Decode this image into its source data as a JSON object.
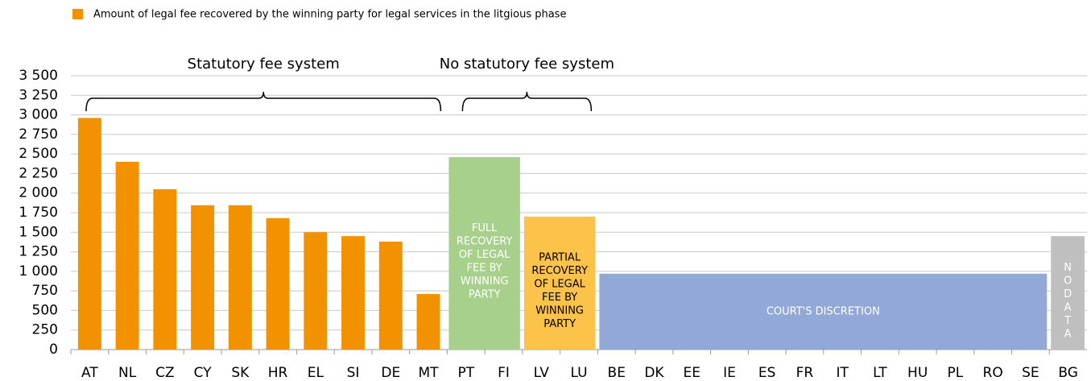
{
  "chart_data": {
    "type": "bar",
    "legend": "Amount of legal fee recovered by the winning party for legal services in the litgious phase",
    "color": "#f39200",
    "categories": [
      "AT",
      "NL",
      "CZ",
      "CY",
      "SK",
      "HR",
      "EL",
      "SI",
      "DE",
      "MT",
      "PT",
      "FI",
      "LV",
      "LU",
      "BE",
      "DK",
      "EE",
      "IE",
      "ES",
      "FR",
      "IT",
      "LT",
      "HU",
      "PL",
      "RO",
      "SE",
      "BG"
    ],
    "values": [
      2960,
      2400,
      2050,
      1845,
      1845,
      1680,
      1500,
      1450,
      1380,
      710,
      null,
      null,
      null,
      null,
      null,
      null,
      null,
      null,
      null,
      null,
      null,
      null,
      null,
      null,
      null,
      null,
      null
    ],
    "ylim": [
      0,
      3500
    ],
    "yticks": [
      0,
      250,
      500,
      750,
      {
        "value": 1000,
        "label": "1 000"
      },
      {
        "value": 1250,
        "label": "1 250"
      },
      {
        "value": 1500,
        "label": "1 500"
      },
      {
        "value": 1750,
        "label": "1 750"
      },
      {
        "value": 2000,
        "label": "2 000"
      },
      {
        "value": 2250,
        "label": "2 250"
      },
      {
        "value": 2500,
        "label": "2 500"
      },
      {
        "value": 2750,
        "label": "2 750"
      },
      {
        "value": 3000,
        "label": "3 000"
      },
      {
        "value": 3250,
        "label": "3 250"
      },
      {
        "value": 3500,
        "label": "3 500"
      }
    ],
    "grid": true,
    "brackets": [
      {
        "label": "Statutory fee system",
        "start": "AT",
        "end": "MT"
      },
      {
        "label": "No statutory fee system",
        "start": "PT",
        "end": "LU"
      }
    ],
    "regions": [
      {
        "lines": [
          "FULL",
          "RECOVERY",
          "OF LEGAL",
          "FEE BY",
          "WINNING",
          "PARTY"
        ],
        "start": "PT",
        "end": "FI",
        "value": 2460,
        "color": "#a8d08d",
        "text_color": "#ffffff"
      },
      {
        "lines": [
          "PARTIAL",
          "RECOVERY",
          "OF LEGAL",
          "FEE BY",
          "WINNING",
          "PARTY"
        ],
        "start": "LV",
        "end": "LU",
        "value": 1700,
        "color": "#fcc34a",
        "text_color": "#000000"
      },
      {
        "lines": [
          "COURT'S DISCRETION"
        ],
        "start": "BE",
        "end": "SE",
        "value": 970,
        "color": "#92a8d6",
        "text_color": "#ffffff"
      },
      {
        "lines": [
          "N",
          "O",
          "D",
          "A",
          "T",
          "A"
        ],
        "start": "BG",
        "end": "BG",
        "value": 1450,
        "color": "#bfbfbf",
        "text_color": "#ffffff"
      }
    ]
  }
}
